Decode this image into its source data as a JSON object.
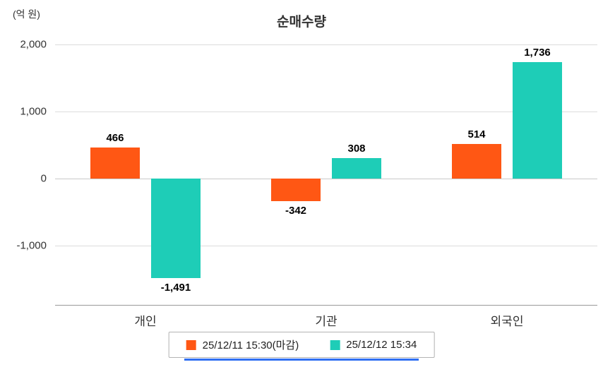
{
  "chart_data": {
    "type": "bar",
    "title": "순매수량",
    "unit": "(억 원)",
    "categories": [
      "개인",
      "기관",
      "외국인"
    ],
    "series": [
      {
        "name": "25/12/11 15:30(마감)",
        "color": "#ff5714",
        "values": [
          466,
          -342,
          514
        ]
      },
      {
        "name": "25/12/12 15:34",
        "color": "#1ecdb7",
        "values": [
          -1491,
          308,
          1736
        ]
      }
    ],
    "yticks": [
      2000,
      1000,
      0,
      -1000
    ],
    "ylim": [
      -1900,
      2000
    ],
    "grid": true,
    "legend_position": "bottom"
  },
  "colors": {
    "gridline": "#dcdcdc",
    "zero_line": "#c8c8c8",
    "axis": "#999999",
    "text": "#333333",
    "legend_border": "#b3b3b3",
    "underline": "#2f6ff2"
  }
}
